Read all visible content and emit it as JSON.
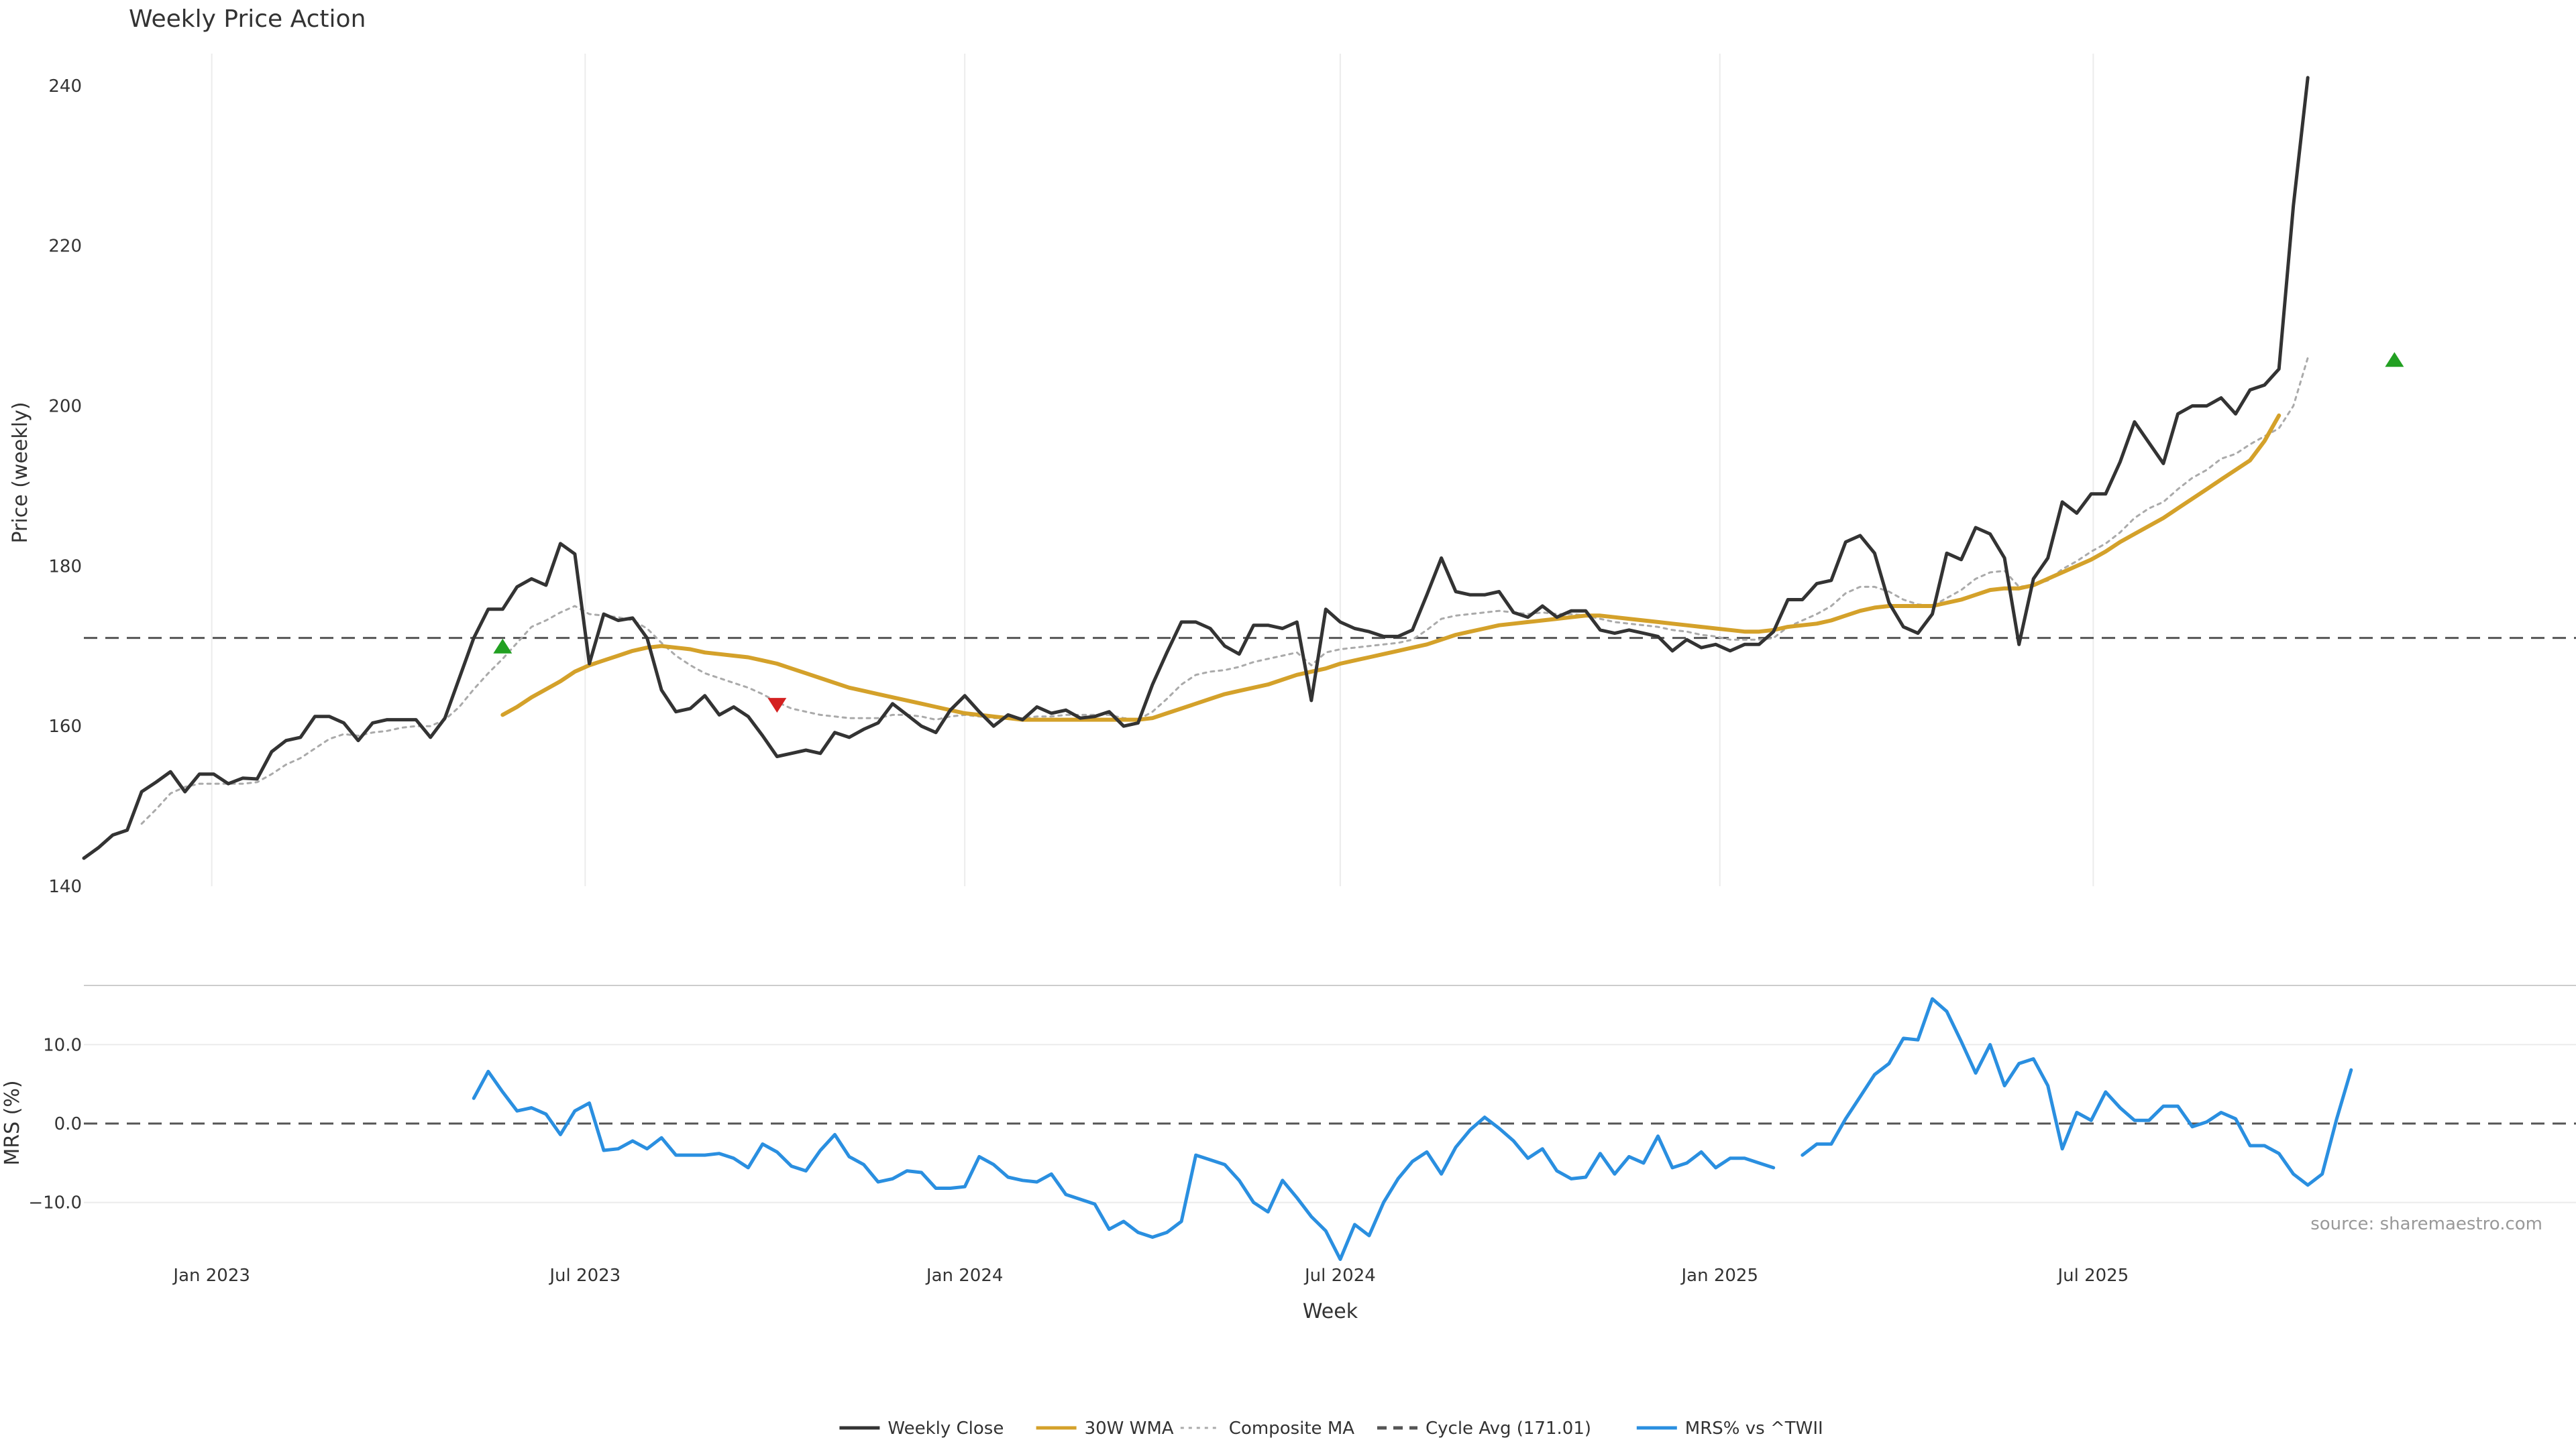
{
  "chart_data": {
    "type": "line",
    "title": "Weekly Price Action",
    "source": "source: sharemaestro.com",
    "xlabel": "Week",
    "x_start": "2022-10-31",
    "x_end": "2025-11-24",
    "x_range": [
      "2022-10-31",
      "2026-02-20"
    ],
    "x_ticks": [
      {
        "date": "2023-01-01",
        "label": "Jan 2023"
      },
      {
        "date": "2023-07-01",
        "label": "Jul 2023"
      },
      {
        "date": "2024-01-01",
        "label": "Jan 2024"
      },
      {
        "date": "2024-07-01",
        "label": "Jul 2024"
      },
      {
        "date": "2025-01-01",
        "label": "Jan 2025"
      },
      {
        "date": "2025-07-01",
        "label": "Jul 2025"
      }
    ],
    "price_panel": {
      "ylabel": "Price (weekly)",
      "ylim": [
        140,
        244
      ],
      "y_ticks": [
        "140",
        "160",
        "180",
        "200",
        "220",
        "240"
      ],
      "grid": "vertical",
      "cycle_avg": 171.01,
      "series": [
        {
          "name": "Weekly Close",
          "color": "#333333",
          "style": "solid",
          "values": [
            143.5,
            144.8,
            146.4,
            147.0,
            151.8,
            153.0,
            154.3,
            151.8,
            154.0,
            154.0,
            152.8,
            153.5,
            153.4,
            156.8,
            158.2,
            158.6,
            161.2,
            161.2,
            160.4,
            158.2,
            160.4,
            160.8,
            160.8,
            160.8,
            158.6,
            161.0,
            166.0,
            171.0,
            174.6,
            174.6,
            177.4,
            178.4,
            177.6,
            182.8,
            181.5,
            167.8,
            174.0,
            173.2,
            173.5,
            171.0,
            164.5,
            161.8,
            162.2,
            163.8,
            161.4,
            162.4,
            161.2,
            158.8,
            156.2,
            156.6,
            157.0,
            156.6,
            159.2,
            158.6,
            159.6,
            160.4,
            162.8,
            161.4,
            160.0,
            159.2,
            162.0,
            163.8,
            161.8,
            160.0,
            161.4,
            160.8,
            162.4,
            161.6,
            162.0,
            161.0,
            161.2,
            161.8,
            160.0,
            160.4,
            165.2,
            169.2,
            173.0,
            173.0,
            172.2,
            170.0,
            169.0,
            172.6,
            172.6,
            172.2,
            173.0,
            163.2,
            174.6,
            173.0,
            172.2,
            171.8,
            171.2,
            171.2,
            172.0,
            176.4,
            181.0,
            176.8,
            176.4,
            176.4,
            176.8,
            174.2,
            173.6,
            175.0,
            173.6,
            174.4,
            174.4,
            172.0,
            171.6,
            172.0,
            171.6,
            171.2,
            169.4,
            170.8,
            169.8,
            170.2,
            169.4,
            170.2,
            170.2,
            171.8,
            175.8,
            175.8,
            177.8,
            178.2,
            183.0,
            183.8,
            181.6,
            175.4,
            172.4,
            171.6,
            174.0,
            181.6,
            180.8,
            184.8,
            184.0,
            181.0,
            170.2,
            178.4,
            181.0,
            188.0,
            186.6,
            189.0,
            189.0,
            193.0,
            198.0,
            195.4,
            192.8,
            199.0,
            200.0,
            200.0,
            201.0,
            199.0,
            202.0,
            202.6,
            204.6,
            225.0,
            241.0
          ]
        },
        {
          "name": "30W WMA",
          "color": "#d4a12a",
          "style": "solid",
          "values": [
            null,
            null,
            null,
            null,
            null,
            null,
            null,
            null,
            null,
            null,
            null,
            null,
            null,
            null,
            null,
            null,
            null,
            null,
            null,
            null,
            null,
            null,
            null,
            null,
            null,
            null,
            null,
            null,
            null,
            161.4,
            162.4,
            163.6,
            164.6,
            165.6,
            166.8,
            167.6,
            168.2,
            168.8,
            169.4,
            169.8,
            170.0,
            169.8,
            169.6,
            169.2,
            169.0,
            168.8,
            168.6,
            168.2,
            167.8,
            167.2,
            166.6,
            166.0,
            165.4,
            164.8,
            164.4,
            164.0,
            163.6,
            163.2,
            162.8,
            162.4,
            162.0,
            161.6,
            161.4,
            161.2,
            161.0,
            160.8,
            160.8,
            160.8,
            160.8,
            160.8,
            160.8,
            160.8,
            160.8,
            160.8,
            161.0,
            161.6,
            162.2,
            162.8,
            163.4,
            164.0,
            164.4,
            164.8,
            165.2,
            165.8,
            166.4,
            166.8,
            167.2,
            167.8,
            168.2,
            168.6,
            169.0,
            169.4,
            169.8,
            170.2,
            170.8,
            171.4,
            171.8,
            172.2,
            172.6,
            172.8,
            173.0,
            173.2,
            173.4,
            173.6,
            173.8,
            173.8,
            173.6,
            173.4,
            173.2,
            173.0,
            172.8,
            172.6,
            172.4,
            172.2,
            172.0,
            171.8,
            171.8,
            172.0,
            172.4,
            172.6,
            172.8,
            173.2,
            173.8,
            174.4,
            174.8,
            175.0,
            175.0,
            175.0,
            175.0,
            175.4,
            175.8,
            176.4,
            177.0,
            177.2,
            177.2,
            177.6,
            178.4,
            179.2,
            180.0,
            180.8,
            181.8,
            183.0,
            184.0,
            185.0,
            186.0,
            187.2,
            188.4,
            189.6,
            190.8,
            192.0,
            193.2,
            195.6,
            198.8
          ]
        },
        {
          "name": "Composite MA",
          "color": "#aaaaaa",
          "style": "dotted",
          "values": [
            null,
            null,
            null,
            null,
            147.8,
            149.6,
            151.6,
            152.4,
            152.8,
            152.8,
            152.8,
            152.8,
            153.0,
            154.0,
            155.2,
            156.0,
            157.2,
            158.4,
            159.0,
            158.8,
            159.2,
            159.4,
            159.8,
            160.0,
            160.0,
            160.8,
            162.4,
            164.6,
            166.6,
            168.4,
            170.4,
            172.4,
            173.2,
            174.2,
            175.0,
            174.0,
            173.8,
            173.6,
            173.2,
            172.2,
            170.4,
            168.8,
            167.6,
            166.6,
            166.0,
            165.4,
            164.8,
            164.0,
            163.0,
            162.2,
            161.8,
            161.4,
            161.2,
            161.0,
            161.0,
            161.0,
            161.4,
            161.4,
            161.2,
            160.8,
            161.2,
            161.4,
            161.2,
            161.0,
            161.0,
            161.0,
            161.2,
            161.2,
            161.4,
            161.4,
            161.4,
            161.4,
            161.0,
            160.8,
            161.8,
            163.4,
            165.2,
            166.4,
            166.8,
            167.0,
            167.4,
            168.0,
            168.4,
            168.8,
            169.2,
            167.6,
            169.2,
            169.6,
            169.8,
            170.0,
            170.2,
            170.4,
            170.8,
            172.0,
            173.4,
            173.8,
            174.0,
            174.2,
            174.4,
            174.2,
            174.0,
            174.2,
            174.0,
            174.0,
            173.8,
            173.4,
            173.0,
            172.8,
            172.6,
            172.4,
            172.0,
            171.8,
            171.4,
            171.2,
            170.8,
            170.8,
            170.8,
            171.0,
            172.4,
            173.2,
            174.0,
            175.0,
            176.6,
            177.4,
            177.4,
            176.8,
            175.8,
            175.2,
            175.0,
            176.0,
            177.0,
            178.4,
            179.2,
            179.4,
            177.4,
            177.6,
            178.2,
            179.6,
            180.6,
            181.8,
            182.8,
            184.2,
            186.0,
            187.2,
            188.0,
            189.6,
            191.0,
            192.0,
            193.4,
            194.0,
            195.2,
            196.2,
            197.2,
            200.0,
            206.0
          ]
        }
      ],
      "markers": [
        {
          "type": "buy",
          "date": "2023-05-22",
          "value": 170.0,
          "color": "#22a022"
        },
        {
          "type": "sell",
          "date": "2023-10-02",
          "value": 162.6,
          "color": "#d42020"
        },
        {
          "type": "buy",
          "date": "2025-11-24",
          "value": 205.8,
          "color": "#22a022"
        }
      ]
    },
    "mrs_panel": {
      "ylabel": "MRS (%)",
      "ylim": [
        -17.5,
        17.5
      ],
      "y_ticks": [
        "10.0",
        "0.0",
        "−10.0"
      ],
      "zero_line": 0,
      "series": [
        {
          "name": "MRS% vs ^TWII",
          "color": "#2a8fe0",
          "style": "solid",
          "values": [
            null,
            null,
            null,
            null,
            null,
            null,
            null,
            null,
            null,
            null,
            null,
            null,
            null,
            null,
            null,
            null,
            null,
            null,
            null,
            null,
            null,
            null,
            null,
            null,
            null,
            null,
            null,
            3.2,
            6.6,
            4.0,
            1.6,
            2.0,
            1.2,
            -1.4,
            1.6,
            2.6,
            -3.4,
            -3.2,
            -2.2,
            -3.2,
            -1.8,
            -4.0,
            -4.0,
            -4.0,
            -3.8,
            -4.4,
            -5.6,
            -2.6,
            -3.6,
            -5.4,
            -6.0,
            -3.4,
            -1.4,
            -4.2,
            -5.2,
            -7.4,
            -7.0,
            -6.0,
            -6.2,
            -8.2,
            -8.2,
            -8.0,
            -4.2,
            -5.2,
            -6.8,
            -7.2,
            -7.4,
            -6.4,
            -9.0,
            -9.6,
            -10.2,
            -13.4,
            -12.4,
            -13.8,
            -14.4,
            -13.8,
            -12.4,
            -4.0,
            -4.6,
            -5.2,
            -7.2,
            -10.0,
            -11.2,
            -7.2,
            -9.4,
            -11.8,
            -13.6,
            -17.2,
            -12.8,
            -14.2,
            -10.0,
            -7.0,
            -4.8,
            -3.6,
            -6.4,
            -3.0,
            -0.8,
            0.8,
            -0.6,
            -2.2,
            -4.4,
            -3.2,
            -6.0,
            -7.0,
            -6.8,
            -3.8,
            -6.4,
            -4.2,
            -5.0,
            -1.6,
            -5.6,
            -5.0,
            -3.6,
            -5.6,
            -4.4,
            -4.4,
            -5.0,
            -5.6,
            null,
            -4.0,
            -2.6,
            -2.6,
            0.6,
            3.4,
            6.2,
            7.6,
            10.8,
            10.6,
            15.8,
            14.2,
            10.4,
            6.4,
            10.0,
            4.8,
            7.6,
            8.2,
            4.8,
            -3.2,
            1.4,
            0.4,
            4.0,
            2.0,
            0.4,
            0.4,
            2.2,
            2.2,
            -0.4,
            0.2,
            1.4,
            0.6,
            -2.8,
            -2.8,
            -3.8,
            -6.4,
            -7.8,
            -6.4,
            0.6,
            6.8
          ]
        }
      ]
    },
    "legend": {
      "placement": "bottom-center",
      "entries": [
        {
          "label": "Weekly Close",
          "color": "#333333",
          "style": "solid"
        },
        {
          "label": "30W WMA",
          "color": "#d4a12a",
          "style": "solid"
        },
        {
          "label": "Composite MA",
          "color": "#aaaaaa",
          "style": "dotted"
        },
        {
          "label": "Cycle Avg (171.01)",
          "color": "#555555",
          "style": "dashed"
        },
        {
          "label": "MRS% vs ^TWII",
          "color": "#2a8fe0",
          "style": "solid"
        }
      ]
    }
  }
}
